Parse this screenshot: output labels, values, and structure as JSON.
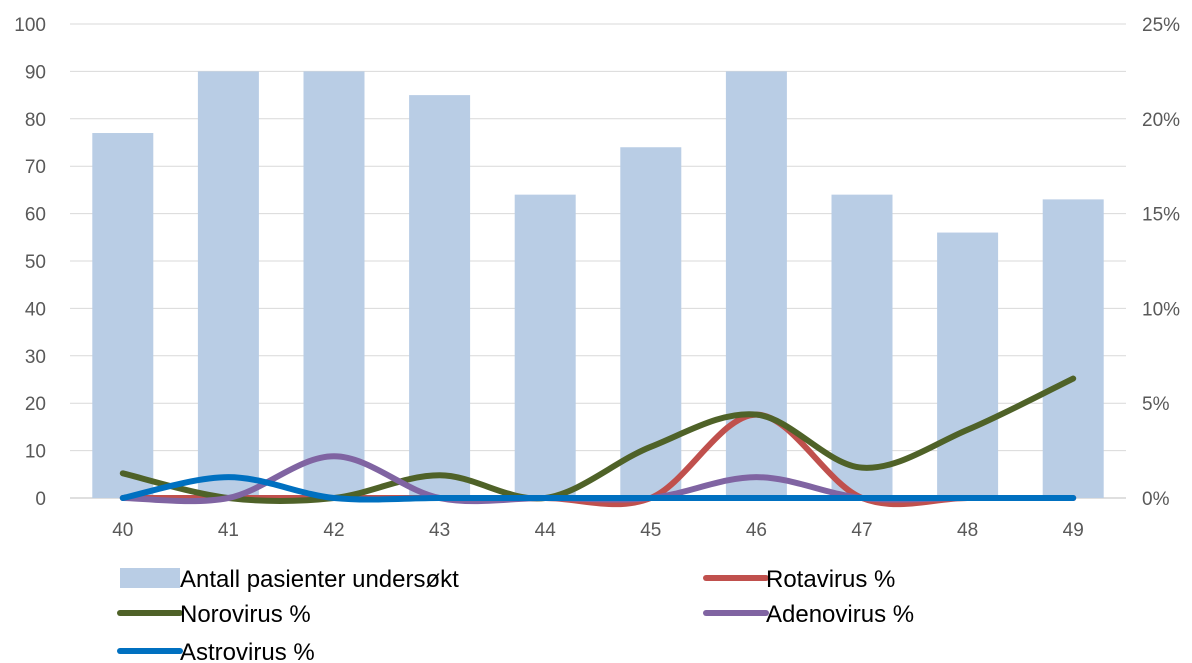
{
  "chart_data": {
    "type": "bar",
    "categories": [
      "40",
      "41",
      "42",
      "43",
      "44",
      "45",
      "46",
      "47",
      "48",
      "49"
    ],
    "bar_series": {
      "name": "Antall pasienter undersøkt",
      "values": [
        77,
        90,
        90,
        85,
        64,
        74,
        90,
        64,
        56,
        63
      ],
      "color": "#b9cde5",
      "axis": "left"
    },
    "line_series": [
      {
        "name": "Rotavirus %",
        "color": "#c0504d",
        "values": [
          0,
          0,
          0,
          0,
          0,
          0,
          4.4,
          0,
          0,
          0
        ]
      },
      {
        "name": "Norovirus %",
        "color": "#4f6228",
        "values": [
          1.3,
          0,
          0,
          1.2,
          0,
          2.7,
          4.4,
          1.6,
          3.6,
          6.3
        ]
      },
      {
        "name": "Adenovirus %",
        "color": "#8064a2",
        "values": [
          0,
          0,
          2.2,
          0,
          0,
          0,
          1.1,
          0,
          0,
          0
        ]
      },
      {
        "name": "Astrovirus %",
        "color": "#0070c0",
        "values": [
          0,
          1.1,
          0,
          0,
          0,
          0,
          0,
          0,
          0,
          0
        ]
      }
    ],
    "y_left": {
      "min": 0,
      "max": 100,
      "ticks": [
        "0",
        "10",
        "20",
        "30",
        "40",
        "50",
        "60",
        "70",
        "80",
        "90",
        "100"
      ]
    },
    "y_right": {
      "min": 0,
      "max": 25,
      "ticks": [
        "0%",
        "5%",
        "10%",
        "15%",
        "20%",
        "25%"
      ]
    },
    "grid": true,
    "legend_position": "bottom",
    "title": "",
    "xlabel": "",
    "ylabel": ""
  }
}
